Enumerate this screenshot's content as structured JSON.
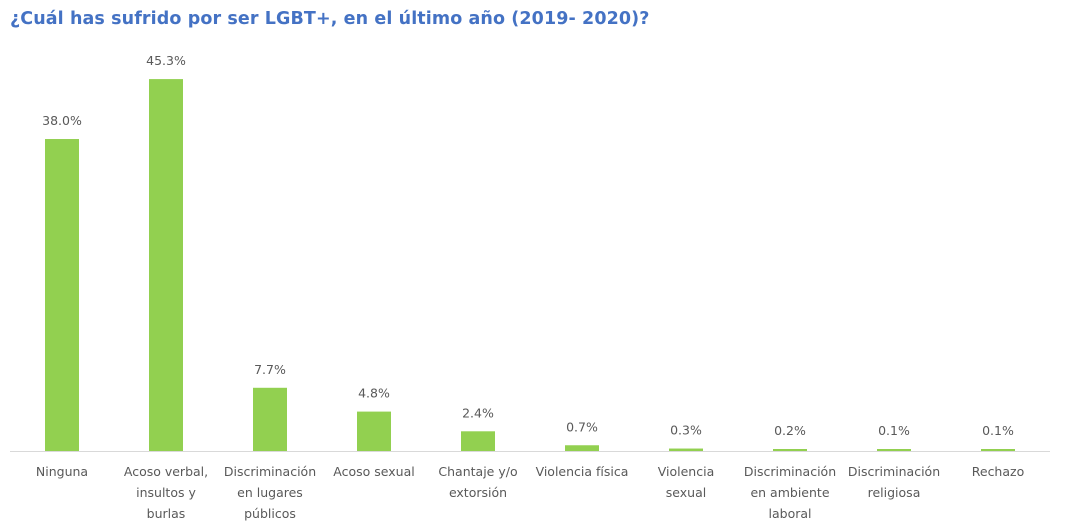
{
  "chart_data": {
    "type": "bar",
    "title": "¿Cuál has sufrido por ser LGBT+, en el último año (2019- 2020)?",
    "xlabel": "",
    "ylabel": "",
    "ylim": [
      0,
      50
    ],
    "grid": false,
    "legend": "none",
    "bar_color": "#92d050",
    "title_color": "#4472c4",
    "categories": [
      [
        "Ninguna"
      ],
      [
        "Acoso verbal,",
        "insultos y",
        "burlas"
      ],
      [
        "Discriminación",
        "en lugares",
        "públicos"
      ],
      [
        "Acoso sexual"
      ],
      [
        "Chantaje y/o",
        "extorsión"
      ],
      [
        "Violencia física"
      ],
      [
        "Violencia",
        "sexual"
      ],
      [
        "Discriminación",
        "en ambiente",
        "laboral"
      ],
      [
        "Discriminación",
        "religiosa"
      ],
      [
        "Rechazo"
      ]
    ],
    "values": [
      38.0,
      45.3,
      7.7,
      4.8,
      2.4,
      0.7,
      0.3,
      0.2,
      0.1,
      0.1
    ],
    "data_labels": [
      "38.0%",
      "45.3%",
      "7.7%",
      "4.8%",
      "2.4%",
      "0.7%",
      "0.3%",
      "0.2%",
      "0.1%",
      "0.1%"
    ]
  }
}
